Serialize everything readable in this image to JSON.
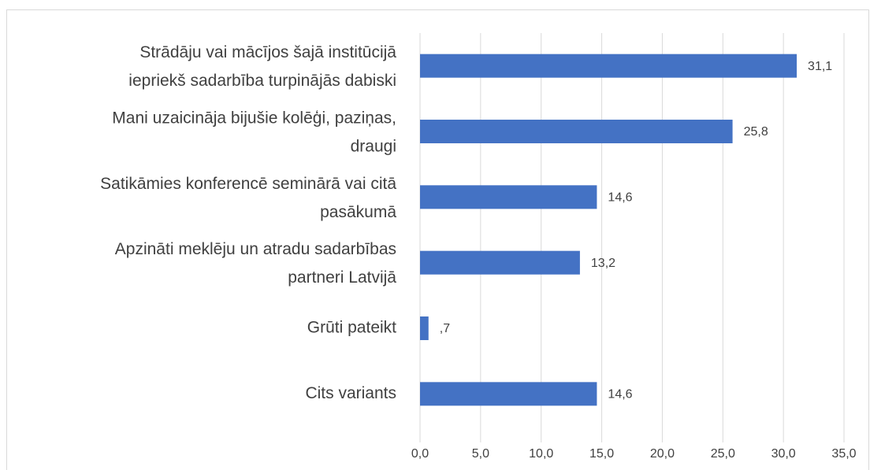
{
  "chart_data": {
    "type": "hbar",
    "categories": [
      [
        "Strādāju vai mācījos šajā institūcijā",
        "iepriekš  sadarbība turpinājās dabiski"
      ],
      [
        "Mani uzaicināja bijušie kolēģi, paziņas,",
        "draugi"
      ],
      [
        "Satikāmies konferencē seminārā vai citā",
        "pasākumā"
      ],
      [
        "Apzināti meklēju un atradu sadarbības",
        "partneri Latvijā"
      ],
      [
        "Grūti pateikt"
      ],
      [
        "Cits variants"
      ]
    ],
    "values": [
      31.1,
      25.8,
      14.6,
      13.2,
      0.7,
      14.6
    ],
    "value_labels": [
      "31,1",
      "25,8",
      "14,6",
      "13,2",
      ",7",
      "14,6"
    ],
    "color": "#4472c4",
    "xlim": [
      0,
      35
    ],
    "xticks": [
      {
        "value": 0,
        "label": "0,0"
      },
      {
        "value": 5,
        "label": "5,0"
      },
      {
        "value": 10,
        "label": "10,0"
      },
      {
        "value": 15,
        "label": "15,0"
      },
      {
        "value": 20,
        "label": "20,0"
      },
      {
        "value": 25,
        "label": "25,0"
      },
      {
        "value": 30,
        "label": "30,0"
      },
      {
        "value": 35,
        "label": "35,0"
      }
    ],
    "grid": true
  }
}
